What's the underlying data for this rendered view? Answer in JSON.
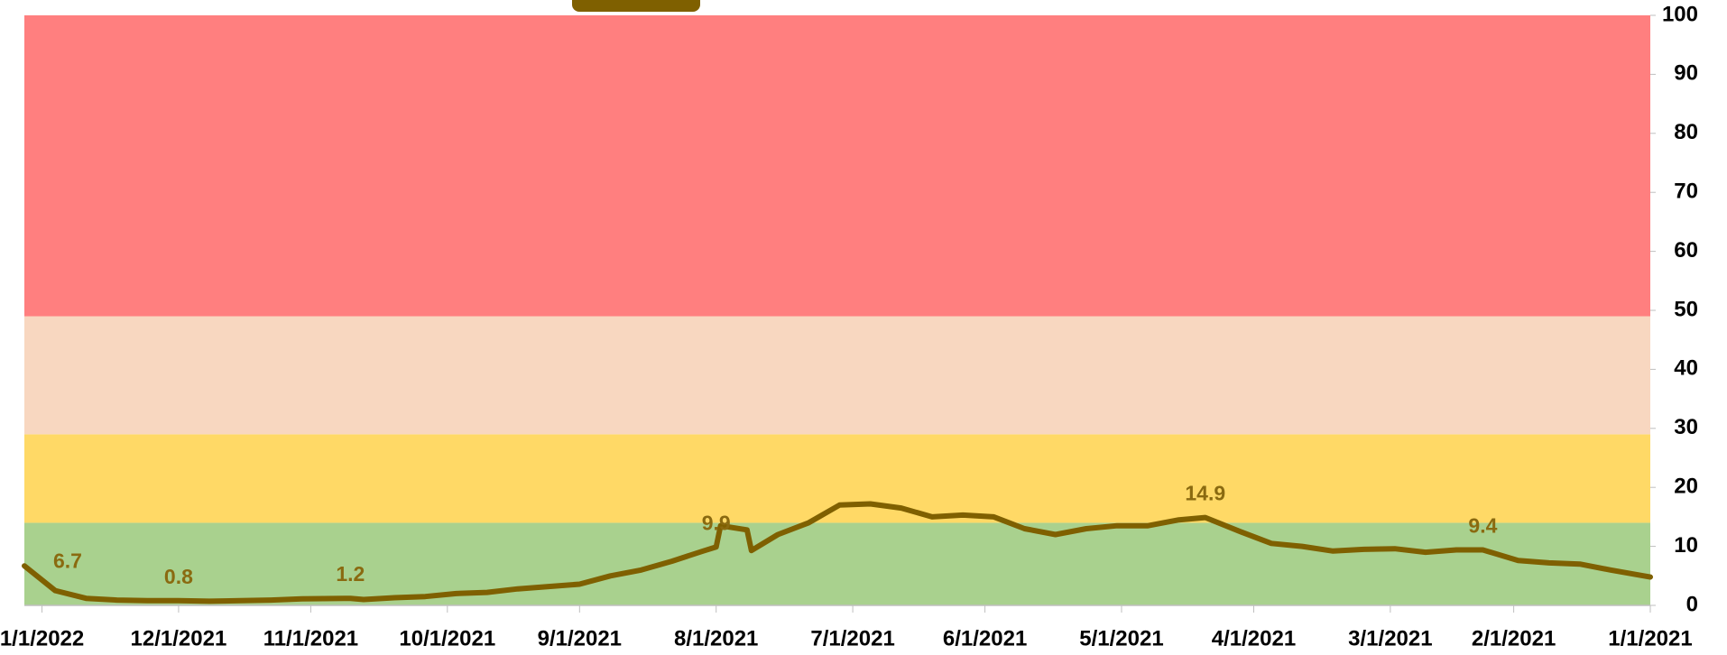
{
  "chart_data": {
    "type": "line",
    "bands": [
      {
        "from": 0,
        "to": 14,
        "color": "#a9d18e"
      },
      {
        "from": 14,
        "to": 29,
        "color": "#ffd966"
      },
      {
        "from": 29,
        "to": 49,
        "color": "#f8d7c0"
      },
      {
        "from": 49,
        "to": 100,
        "color": "#ff7f7f"
      }
    ],
    "xlim": [
      "1/5/2022",
      "1/1/2021"
    ],
    "xticks": [
      "1/1/2022",
      "12/1/2021",
      "11/1/2021",
      "10/1/2021",
      "9/1/2021",
      "8/1/2021",
      "7/1/2021",
      "6/1/2021",
      "5/1/2021",
      "4/1/2021",
      "3/1/2021",
      "2/1/2021",
      "1/1/2021"
    ],
    "ylim": [
      0,
      100
    ],
    "yticks": [
      0,
      10,
      20,
      30,
      40,
      50,
      60,
      70,
      80,
      90,
      100
    ],
    "series": [
      {
        "color": "#7f6000",
        "x": [
          "1/5/2022",
          "12/29/2021",
          "12/22/2021",
          "12/15/2021",
          "12/8/2021",
          "12/1/2021",
          "11/24/2021",
          "11/17/2021",
          "11/10/2021",
          "11/3/2021",
          "10/23/2021",
          "10/20/2021",
          "10/13/2021",
          "10/6/2021",
          "9/29/2021",
          "9/22/2021",
          "9/15/2021",
          "9/8/2021",
          "9/1/2021",
          "8/25/2021",
          "8/18/2021",
          "8/11/2021",
          "8/4/2021",
          "8/1/2021",
          "7/31/2021",
          "7/25/2021",
          "7/24/2021",
          "7/18/2021",
          "7/11/2021",
          "7/4/2021",
          "6/27/2021",
          "6/20/2021",
          "6/13/2021",
          "6/6/2021",
          "5/30/2021",
          "5/23/2021",
          "5/16/2021",
          "5/9/2021",
          "5/2/2021",
          "4/25/2021",
          "4/18/2021",
          "4/12/2021",
          "4/4/2021",
          "3/28/2021",
          "3/21/2021",
          "3/14/2021",
          "3/7/2021",
          "2/28/2021",
          "2/21/2021",
          "2/14/2021",
          "2/8/2021",
          "1/31/2021",
          "1/24/2021",
          "1/17/2021",
          "1/10/2021",
          "1/1/2021"
        ],
        "values": [
          6.7,
          2.5,
          1.2,
          0.9,
          0.8,
          0.8,
          0.7,
          0.8,
          0.9,
          1.1,
          1.2,
          1.0,
          1.3,
          1.5,
          2.0,
          2.2,
          2.8,
          3.2,
          3.6,
          5.0,
          6.0,
          7.5,
          9.2,
          9.9,
          13.5,
          12.8,
          9.3,
          12.0,
          14.0,
          17.0,
          17.2,
          16.5,
          15.0,
          15.3,
          15.0,
          13.0,
          12.0,
          13.0,
          13.5,
          13.5,
          14.5,
          14.9,
          12.5,
          10.5,
          10.0,
          9.2,
          9.5,
          9.6,
          9.0,
          9.4,
          9.4,
          7.6,
          7.2,
          7.0,
          6.0,
          4.8
        ],
        "value_labels": [
          "6.7",
          null,
          null,
          null,
          null,
          "0.8",
          null,
          null,
          null,
          null,
          "1.2",
          null,
          null,
          null,
          null,
          null,
          null,
          null,
          null,
          null,
          null,
          null,
          null,
          "9.9",
          null,
          null,
          null,
          null,
          null,
          null,
          null,
          null,
          null,
          null,
          null,
          null,
          null,
          null,
          null,
          null,
          null,
          "14.9",
          null,
          null,
          null,
          null,
          null,
          null,
          null,
          null,
          "9.4",
          null,
          null,
          null,
          null,
          null
        ]
      }
    ]
  }
}
